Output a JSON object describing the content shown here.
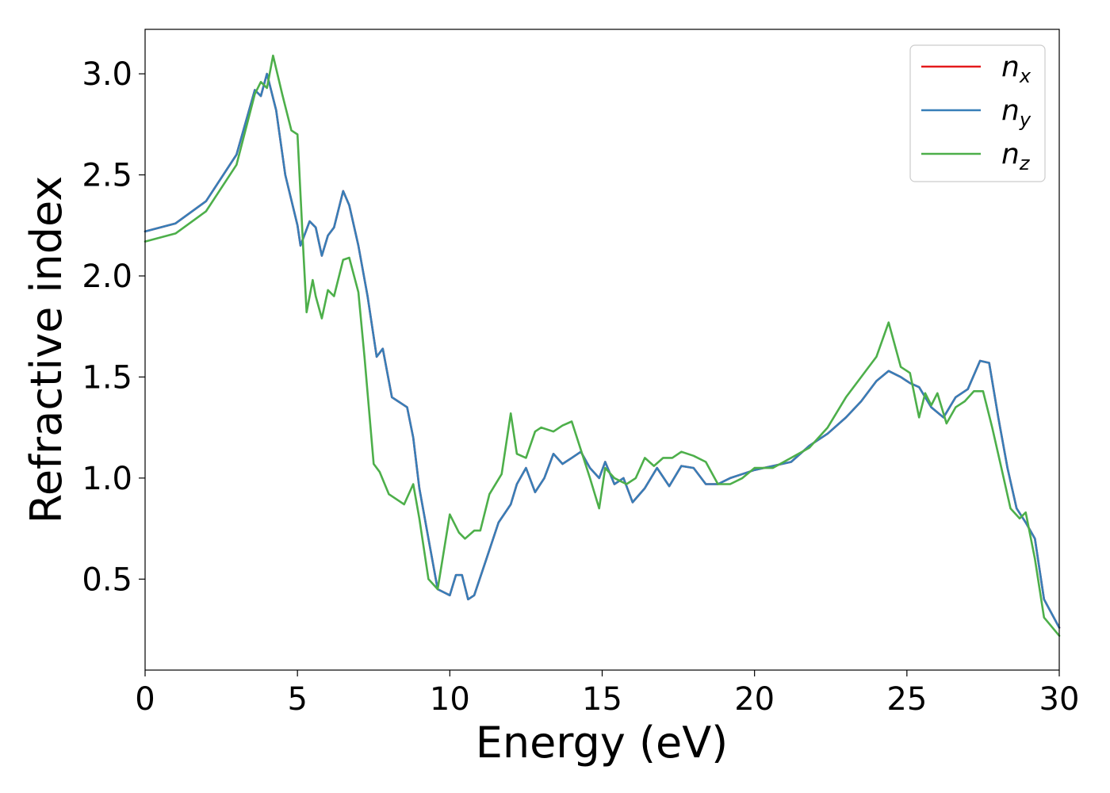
{
  "chart_data": {
    "type": "line",
    "title": "",
    "xlabel": "Energy (eV)",
    "ylabel": "Refractive index",
    "xlim": [
      0,
      30
    ],
    "ylim": [
      0.05,
      3.22
    ],
    "xticks": [
      "0",
      "5",
      "10",
      "15",
      "20",
      "25",
      "30"
    ],
    "yticks": [
      "0.5",
      "1.0",
      "1.5",
      "2.0",
      "2.5",
      "3.0"
    ],
    "grid": false,
    "legend_position": "top-right",
    "series": [
      {
        "name": "n",
        "subscript": "x",
        "color": "#e41a1c",
        "x": [
          0,
          1,
          2,
          3,
          3.6,
          3.8,
          4.0,
          4.3,
          4.6,
          5.0,
          5.1,
          5.4,
          5.6,
          5.8,
          6.0,
          6.2,
          6.5,
          6.7,
          7.0,
          7.3,
          7.6,
          7.8,
          8.1,
          8.3,
          8.6,
          8.8,
          9.0,
          9.3,
          9.6,
          10.0,
          10.2,
          10.4,
          10.6,
          10.8,
          11.2,
          11.6,
          12.0,
          12.2,
          12.5,
          12.8,
          13.1,
          13.4,
          13.7,
          14.0,
          14.3,
          14.6,
          14.9,
          15.1,
          15.4,
          15.7,
          16.0,
          16.4,
          16.8,
          17.2,
          17.6,
          18.0,
          18.4,
          18.8,
          19.2,
          19.6,
          20.0,
          20.6,
          21.2,
          21.8,
          22.4,
          23.0,
          23.5,
          24.0,
          24.4,
          24.8,
          25.1,
          25.4,
          25.8,
          26.2,
          26.6,
          27.0,
          27.4,
          27.7,
          28.0,
          28.3,
          28.6,
          28.9,
          29.2,
          29.5,
          30.0
        ],
        "y": [
          2.22,
          2.26,
          2.37,
          2.6,
          2.92,
          2.89,
          3.0,
          2.82,
          2.5,
          2.25,
          2.15,
          2.27,
          2.24,
          2.1,
          2.2,
          2.24,
          2.42,
          2.35,
          2.15,
          1.9,
          1.6,
          1.64,
          1.4,
          1.38,
          1.35,
          1.2,
          0.95,
          0.7,
          0.45,
          0.42,
          0.52,
          0.52,
          0.4,
          0.42,
          0.6,
          0.78,
          0.87,
          0.97,
          1.05,
          0.93,
          1.0,
          1.12,
          1.07,
          1.1,
          1.13,
          1.05,
          1.0,
          1.08,
          0.97,
          1.0,
          0.88,
          0.95,
          1.05,
          0.96,
          1.06,
          1.05,
          0.97,
          0.97,
          1.0,
          1.02,
          1.04,
          1.06,
          1.08,
          1.16,
          1.22,
          1.3,
          1.38,
          1.48,
          1.53,
          1.5,
          1.47,
          1.45,
          1.35,
          1.3,
          1.4,
          1.44,
          1.58,
          1.57,
          1.3,
          1.05,
          0.85,
          0.78,
          0.7,
          0.4,
          0.26
        ]
      },
      {
        "name": "n",
        "subscript": "y",
        "color": "#377eb8",
        "x": [
          0,
          1,
          2,
          3,
          3.6,
          3.8,
          4.0,
          4.3,
          4.6,
          5.0,
          5.1,
          5.4,
          5.6,
          5.8,
          6.0,
          6.2,
          6.5,
          6.7,
          7.0,
          7.3,
          7.6,
          7.8,
          8.1,
          8.3,
          8.6,
          8.8,
          9.0,
          9.3,
          9.6,
          10.0,
          10.2,
          10.4,
          10.6,
          10.8,
          11.2,
          11.6,
          12.0,
          12.2,
          12.5,
          12.8,
          13.1,
          13.4,
          13.7,
          14.0,
          14.3,
          14.6,
          14.9,
          15.1,
          15.4,
          15.7,
          16.0,
          16.4,
          16.8,
          17.2,
          17.6,
          18.0,
          18.4,
          18.8,
          19.2,
          19.6,
          20.0,
          20.6,
          21.2,
          21.8,
          22.4,
          23.0,
          23.5,
          24.0,
          24.4,
          24.8,
          25.1,
          25.4,
          25.8,
          26.2,
          26.6,
          27.0,
          27.4,
          27.7,
          28.0,
          28.3,
          28.6,
          28.9,
          29.2,
          29.5,
          30.0
        ],
        "y": [
          2.22,
          2.26,
          2.37,
          2.6,
          2.92,
          2.89,
          3.0,
          2.82,
          2.5,
          2.25,
          2.15,
          2.27,
          2.24,
          2.1,
          2.2,
          2.24,
          2.42,
          2.35,
          2.15,
          1.9,
          1.6,
          1.64,
          1.4,
          1.38,
          1.35,
          1.2,
          0.95,
          0.7,
          0.45,
          0.42,
          0.52,
          0.52,
          0.4,
          0.42,
          0.6,
          0.78,
          0.87,
          0.97,
          1.05,
          0.93,
          1.0,
          1.12,
          1.07,
          1.1,
          1.13,
          1.05,
          1.0,
          1.08,
          0.97,
          1.0,
          0.88,
          0.95,
          1.05,
          0.96,
          1.06,
          1.05,
          0.97,
          0.97,
          1.0,
          1.02,
          1.04,
          1.06,
          1.08,
          1.16,
          1.22,
          1.3,
          1.38,
          1.48,
          1.53,
          1.5,
          1.47,
          1.45,
          1.35,
          1.3,
          1.4,
          1.44,
          1.58,
          1.57,
          1.3,
          1.05,
          0.85,
          0.78,
          0.7,
          0.4,
          0.26
        ]
      },
      {
        "name": "n",
        "subscript": "z",
        "color": "#4daf4a",
        "x": [
          0,
          1,
          2,
          3,
          3.6,
          3.8,
          4.0,
          4.2,
          4.5,
          4.8,
          5.0,
          5.2,
          5.3,
          5.5,
          5.6,
          5.8,
          6.0,
          6.2,
          6.5,
          6.7,
          7.0,
          7.2,
          7.5,
          7.7,
          8.0,
          8.2,
          8.5,
          8.8,
          9.0,
          9.3,
          9.6,
          10.0,
          10.3,
          10.5,
          10.8,
          11.0,
          11.3,
          11.7,
          12.0,
          12.2,
          12.5,
          12.8,
          13.0,
          13.4,
          13.7,
          14.0,
          14.3,
          14.6,
          14.9,
          15.1,
          15.4,
          15.8,
          16.1,
          16.4,
          16.7,
          17.0,
          17.3,
          17.6,
          18.0,
          18.4,
          18.8,
          19.2,
          19.6,
          20.0,
          20.6,
          21.2,
          21.8,
          22.4,
          23.0,
          23.5,
          24.0,
          24.4,
          24.8,
          25.1,
          25.4,
          25.6,
          25.8,
          26.0,
          26.3,
          26.6,
          26.9,
          27.2,
          27.5,
          27.8,
          28.1,
          28.4,
          28.7,
          28.9,
          29.2,
          29.5,
          30.0
        ],
        "y": [
          2.17,
          2.21,
          2.32,
          2.55,
          2.9,
          2.96,
          2.93,
          3.09,
          2.9,
          2.72,
          2.7,
          2.1,
          1.82,
          1.98,
          1.9,
          1.79,
          1.93,
          1.9,
          2.08,
          2.09,
          1.92,
          1.6,
          1.07,
          1.03,
          0.92,
          0.9,
          0.87,
          0.97,
          0.8,
          0.5,
          0.45,
          0.82,
          0.73,
          0.7,
          0.74,
          0.74,
          0.92,
          1.02,
          1.32,
          1.12,
          1.1,
          1.23,
          1.25,
          1.23,
          1.26,
          1.28,
          1.14,
          1.0,
          0.85,
          1.05,
          1.0,
          0.97,
          1.0,
          1.1,
          1.06,
          1.1,
          1.1,
          1.13,
          1.11,
          1.08,
          0.97,
          0.97,
          1.0,
          1.05,
          1.05,
          1.1,
          1.15,
          1.25,
          1.4,
          1.5,
          1.6,
          1.77,
          1.55,
          1.52,
          1.3,
          1.42,
          1.36,
          1.42,
          1.27,
          1.35,
          1.38,
          1.43,
          1.43,
          1.25,
          1.05,
          0.85,
          0.8,
          0.83,
          0.6,
          0.31,
          0.22
        ]
      }
    ]
  }
}
